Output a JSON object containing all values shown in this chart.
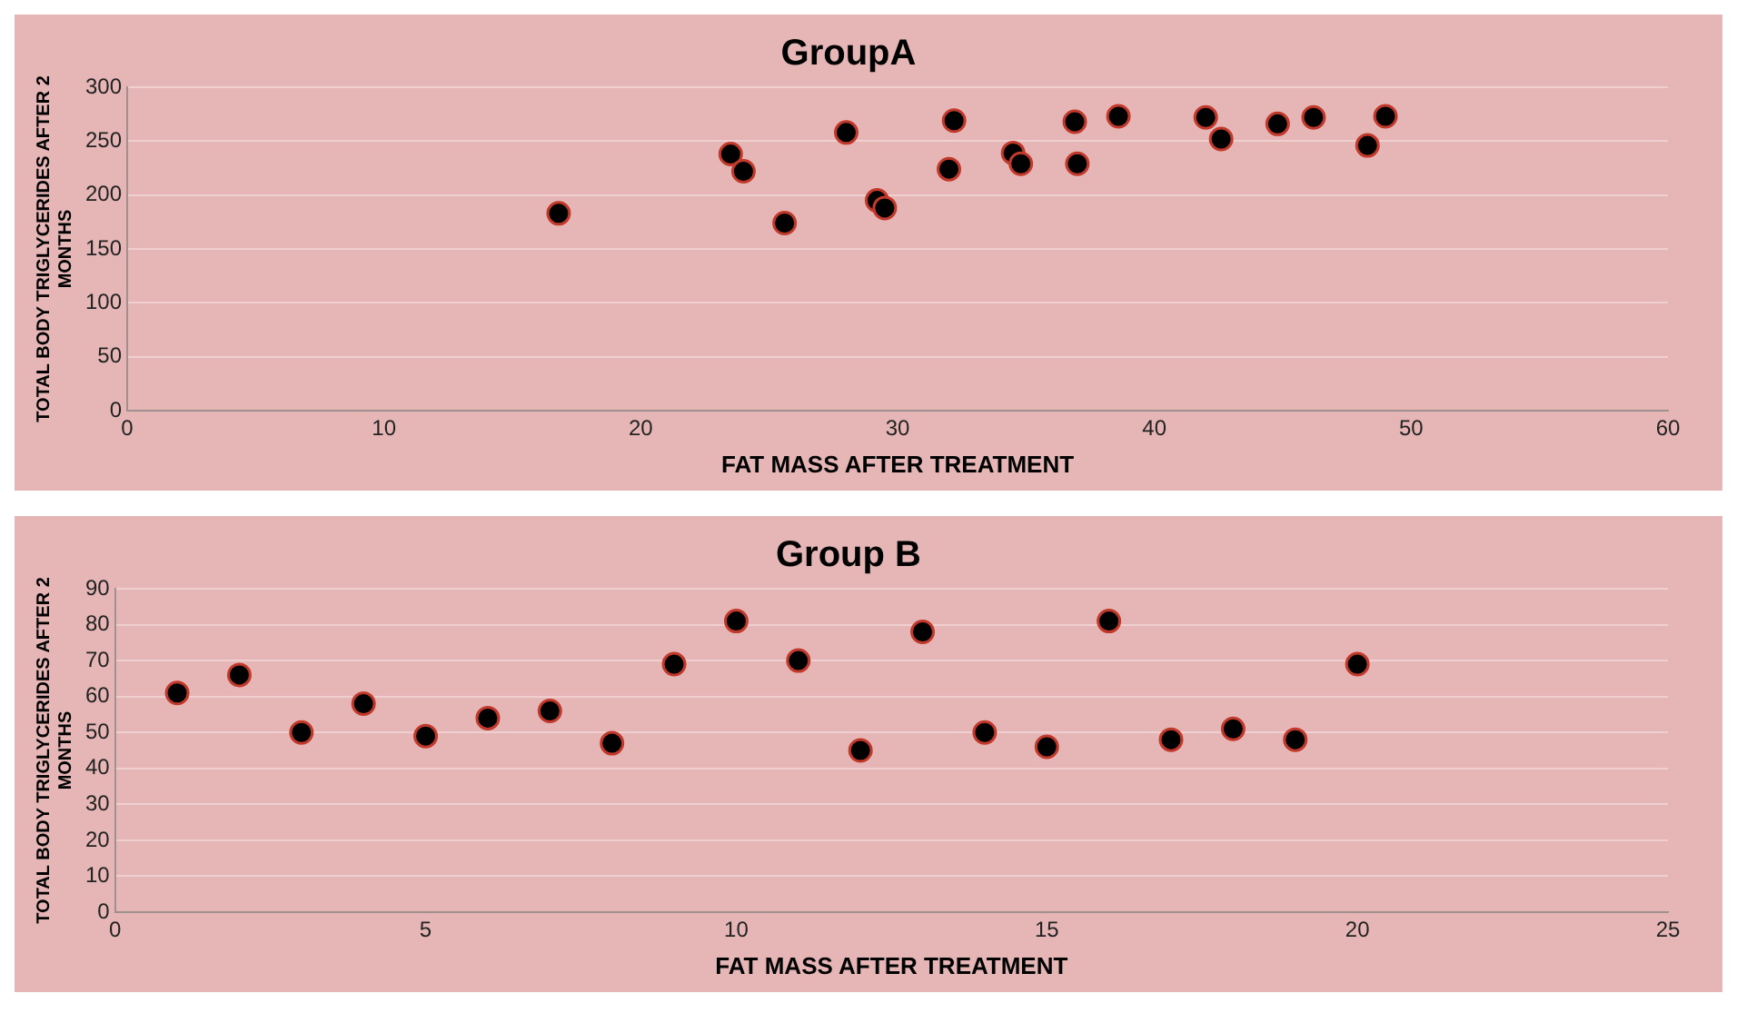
{
  "chart_data": [
    {
      "type": "scatter",
      "title": "GroupA",
      "xlabel": "FAT MASS AFTER TREATMENT",
      "ylabel": "TOTAL BODY TRIGLYCERIDES AFTER 2 MONTHS",
      "x": [
        16.8,
        23.5,
        24.0,
        25.6,
        28.0,
        29.2,
        29.5,
        32.2,
        32.0,
        34.5,
        34.8,
        36.9,
        37.0,
        38.6,
        42.0,
        42.6,
        44.8,
        46.2,
        48.3,
        49.0
      ],
      "series": [
        {
          "color": "#000000",
          "values": [
            183,
            238,
            222,
            174,
            258,
            195,
            188,
            269,
            224,
            239,
            229,
            268,
            229,
            273,
            272,
            252,
            266,
            272,
            246,
            273
          ]
        }
      ],
      "xlim": [
        0,
        60
      ],
      "xticks": [
        0,
        10,
        20,
        30,
        40,
        50,
        60
      ],
      "ylim": [
        0,
        300
      ],
      "yticks": [
        0,
        50,
        100,
        150,
        200,
        250,
        300
      ],
      "grid": "y",
      "legend": false,
      "marker": "circle"
    },
    {
      "type": "scatter",
      "title": "Group B",
      "xlabel": "FAT MASS AFTER TREATMENT",
      "ylabel": "TOTAL BODY TRIGLYCERIDES AFTER 2 MONTHS",
      "x": [
        1,
        2,
        3,
        4,
        5,
        6,
        7,
        8,
        9,
        10,
        11,
        12,
        13,
        14,
        15,
        16,
        17,
        18,
        19,
        20
      ],
      "series": [
        {
          "color": "#000000",
          "values": [
            61,
            66,
            50,
            58,
            49,
            54,
            56,
            47,
            69,
            81,
            70,
            45,
            78,
            50,
            46,
            81,
            48,
            51,
            48,
            69
          ]
        }
      ],
      "xlim": [
        0,
        25
      ],
      "xticks": [
        0,
        5,
        10,
        15,
        20,
        25
      ],
      "ylim": [
        0,
        90
      ],
      "yticks": [
        0,
        10,
        20,
        30,
        40,
        50,
        60,
        70,
        80,
        90
      ],
      "grid": "y",
      "legend": false,
      "marker": "circle"
    }
  ]
}
